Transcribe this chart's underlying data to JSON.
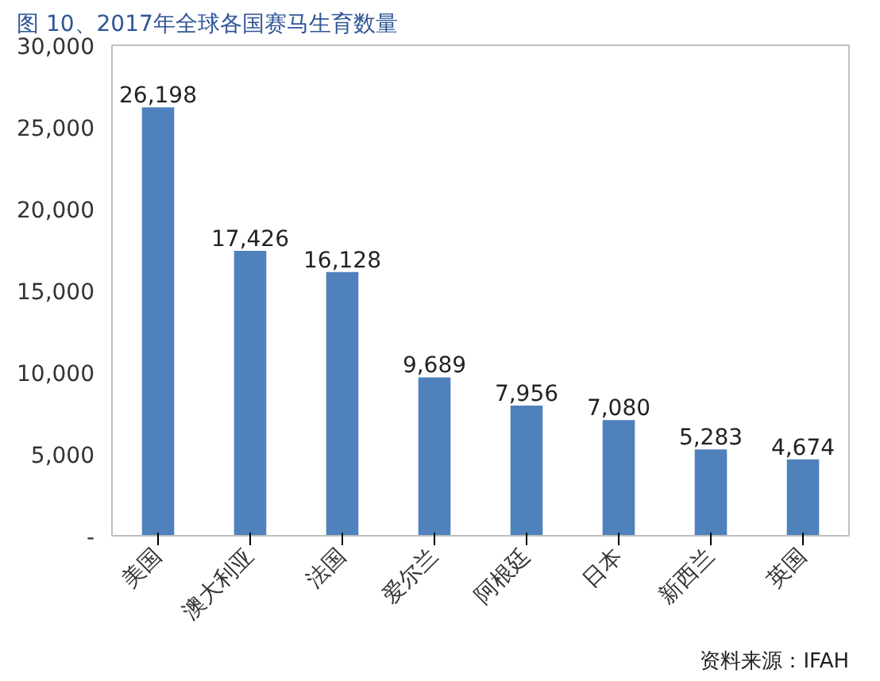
{
  "chart_data": {
    "type": "bar",
    "title": "图 10、2017年全球各国赛马生育数量",
    "categories": [
      "美国",
      "澳大利亚",
      "法国",
      "爱尔兰",
      "阿根廷",
      "日本",
      "新西兰",
      "英国"
    ],
    "values": [
      26198,
      17426,
      16128,
      9689,
      7956,
      7080,
      5283,
      4674
    ],
    "color": "#4f81bd",
    "ylim": [
      0,
      30000
    ],
    "yticks": [
      {
        "value": 0,
        "label": "-"
      },
      {
        "value": 5000,
        "label": "5,000"
      },
      {
        "value": 10000,
        "label": "10,000"
      },
      {
        "value": 15000,
        "label": "15,000"
      },
      {
        "value": 20000,
        "label": "20,000"
      },
      {
        "value": 25000,
        "label": "25,000"
      },
      {
        "value": 30000,
        "label": "30,000"
      }
    ],
    "value_labels": [
      "26,198",
      "17,426",
      "16,128",
      "9,689",
      "7,956",
      "7,080",
      "5,283",
      "4,674"
    ],
    "grid": false,
    "annotations": [
      "资料来源：IFAH"
    ]
  }
}
